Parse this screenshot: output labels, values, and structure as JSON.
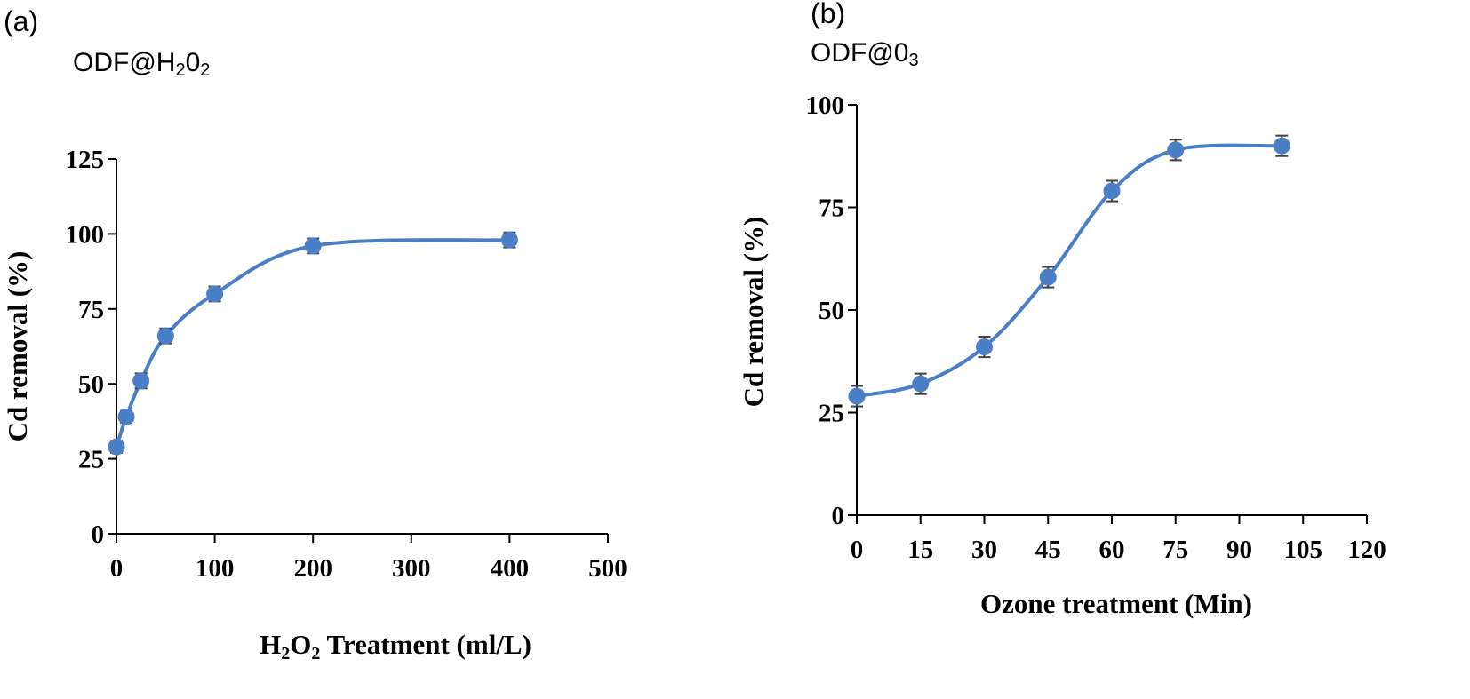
{
  "chart_data": [
    {
      "type": "scatter",
      "panel_label": "(a)",
      "title": {
        "main": "ODF@H",
        "sub1": "2",
        "mid": "0",
        "sub2": "2"
      },
      "xlabel": {
        "main": "H",
        "sub1": "2",
        "mid": "O",
        "sub2": "2",
        "rest": " Treatment (ml/L)"
      },
      "ylabel": "Cd removal (%)",
      "xlim": [
        0,
        500
      ],
      "ylim": [
        0,
        125
      ],
      "xticks": [
        0,
        100,
        200,
        300,
        400,
        500
      ],
      "yticks": [
        0,
        25,
        50,
        75,
        100,
        125
      ],
      "series": [
        {
          "name": "Cd removal",
          "color": "#4a7ec6",
          "x": [
            0,
            10,
            25,
            50,
            100,
            200,
            400
          ],
          "y": [
            29,
            39,
            51,
            66,
            80,
            96,
            98
          ],
          "error": [
            2,
            2,
            2.5,
            2.5,
            2.5,
            2.5,
            2.5
          ]
        }
      ]
    },
    {
      "type": "scatter",
      "panel_label": "(b)",
      "title": {
        "main": "ODF@0",
        "sub1": "3"
      },
      "xlabel": "Ozone treatment (Min)",
      "ylabel": "Cd removal (%)",
      "xlim": [
        0,
        120
      ],
      "ylim": [
        0,
        100
      ],
      "xticks": [
        0,
        15,
        30,
        45,
        60,
        75,
        90,
        105,
        120
      ],
      "yticks": [
        0,
        25,
        50,
        75,
        100
      ],
      "series": [
        {
          "name": "Cd removal",
          "color": "#4a7ec6",
          "x": [
            0,
            15,
            30,
            45,
            60,
            75,
            100
          ],
          "y": [
            29,
            32,
            41,
            58,
            79,
            89,
            90
          ],
          "error": [
            2.5,
            2.5,
            2.5,
            2.5,
            2.5,
            2.5,
            2.5
          ]
        }
      ]
    }
  ]
}
